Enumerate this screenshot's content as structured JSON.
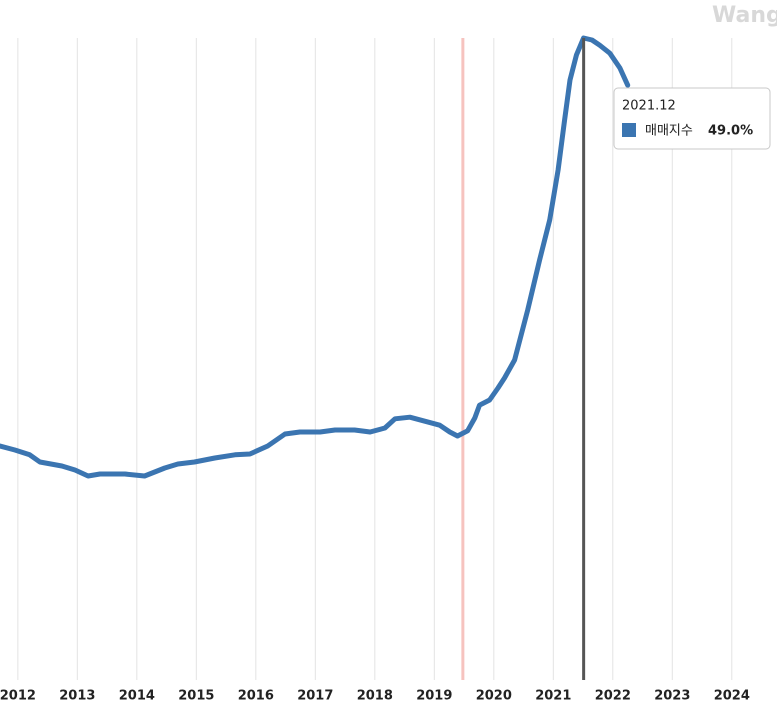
{
  "chart_data": {
    "type": "line",
    "watermark": "Wang",
    "x": [
      2011.7,
      2011.95,
      2012.2,
      2012.37,
      2012.74,
      2012.96,
      2013.18,
      2013.38,
      2013.8,
      2014.13,
      2014.47,
      2014.69,
      2014.97,
      2015.31,
      2015.65,
      2015.9,
      2016.2,
      2016.49,
      2016.74,
      2017.08,
      2017.33,
      2017.66,
      2017.92,
      2018.17,
      2018.34,
      2018.59,
      2018.84,
      2019.09,
      2019.26,
      2019.39,
      2019.56,
      2019.68,
      2019.76,
      2019.93,
      2020.07,
      2020.18,
      2020.35,
      2020.57,
      2020.77,
      2020.94,
      2021.08,
      2021.19,
      2021.28,
      2021.39,
      2021.51,
      2021.65,
      2021.78,
      2021.95,
      2022.12,
      2022.25
    ],
    "series": [
      {
        "name": "매매지수",
        "color": "#3b75b1",
        "values": [
          -2.0,
          -2.5,
          -3.1,
          -4.0,
          -4.5,
          -5.0,
          -5.75,
          -5.5,
          -5.5,
          -5.75,
          -4.75,
          -4.25,
          -4.0,
          -3.5,
          -3.1,
          -3.0,
          -2.0,
          -0.5,
          -0.25,
          -0.25,
          0,
          0,
          -0.25,
          0.25,
          1.4,
          1.6,
          1.1,
          0.6,
          -0.25,
          -0.75,
          -0.1,
          1.5,
          3.1,
          3.75,
          5.25,
          6.5,
          8.75,
          15,
          21.25,
          26.25,
          32.5,
          38.75,
          43.75,
          46.9,
          49,
          48.75,
          48.1,
          47.1,
          45.25,
          43.1
        ]
      }
    ],
    "xlim": [
      2011.7,
      2024.76
    ],
    "xticks": [
      2012,
      2013,
      2014,
      2015,
      2016,
      2017,
      2018,
      2019,
      2020,
      2021,
      2022,
      2023,
      2024
    ],
    "ylim": [
      -31.25,
      53.75
    ],
    "grid": true,
    "reference_x": 2019.48,
    "highlight_x": 2021.51,
    "tooltip": {
      "title": "2021.12",
      "name": "매매지수",
      "value": 49.0,
      "value_label": "49.0%"
    }
  }
}
